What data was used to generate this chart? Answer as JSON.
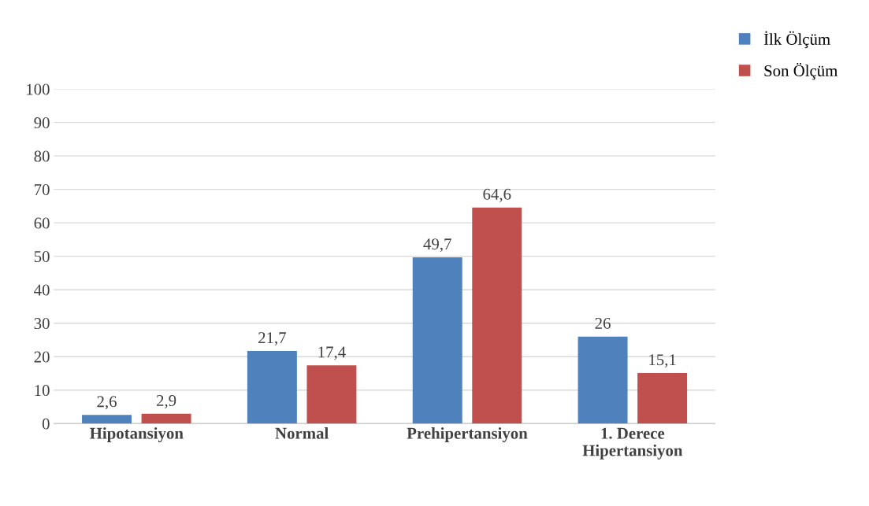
{
  "chart_data": {
    "type": "bar",
    "categories": [
      "Hipotansiyon",
      "Normal",
      "Prehipertansiyon",
      "1. Derece\nHipertansiyon"
    ],
    "series": [
      {
        "name": "İlk Ölçüm",
        "color": "#4f81bd",
        "values": [
          2.6,
          21.7,
          49.7,
          26
        ],
        "value_labels": [
          "2,6",
          "21,7",
          "49,7",
          "26"
        ]
      },
      {
        "name": "Son Ölçüm",
        "color": "#c0504d",
        "values": [
          2.9,
          17.4,
          64.6,
          15.1
        ],
        "value_labels": [
          "2,9",
          "17,4",
          "64,6",
          "15,1"
        ]
      }
    ],
    "ylim": [
      0,
      100
    ],
    "yticks": [
      0,
      10,
      20,
      30,
      40,
      50,
      60,
      70,
      80,
      90,
      100
    ],
    "grid": "y",
    "legend": "top right"
  }
}
